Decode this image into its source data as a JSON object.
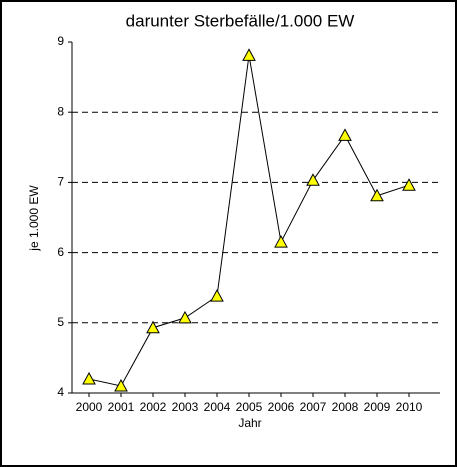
{
  "chart_data": {
    "type": "line",
    "title": "darunter Sterbefälle/1.000 EW",
    "x_label": "Jahr",
    "y_label": "je 1.000 EW",
    "categories": [
      "2000",
      "2001",
      "2002",
      "2003",
      "2004",
      "2005",
      "2006",
      "2007",
      "2008",
      "2009",
      "2010"
    ],
    "series": [
      {
        "name": "darunter Sterbefälle/1.000 EW",
        "color": "#ffff00",
        "values": [
          4.2,
          4.1,
          4.93,
          5.07,
          5.38,
          8.81,
          6.15,
          7.03,
          7.67,
          6.81,
          6.96
        ]
      }
    ],
    "ylim": [
      4,
      9
    ],
    "yticks": [
      4,
      5,
      6,
      7,
      8,
      9
    ],
    "grid": true
  }
}
